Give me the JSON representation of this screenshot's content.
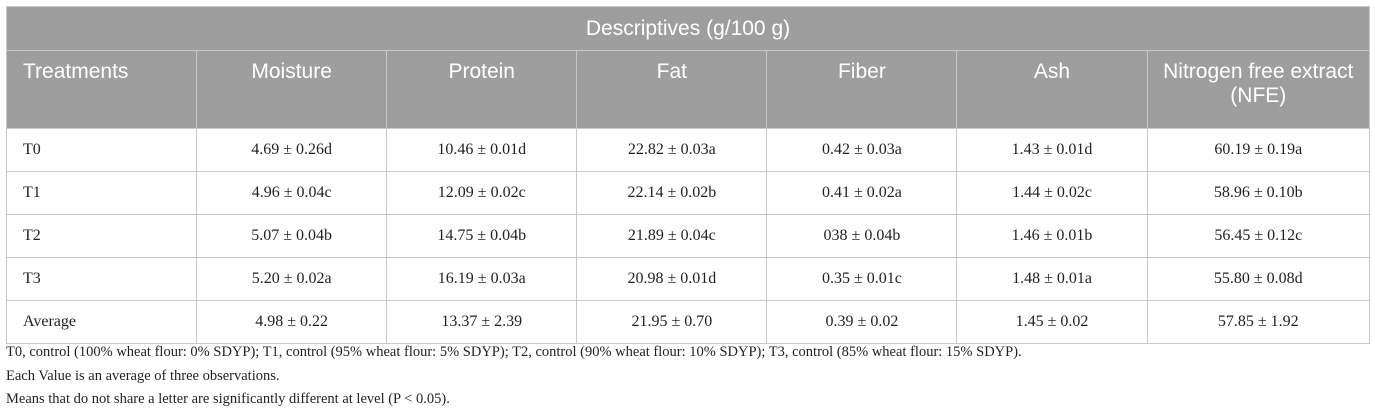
{
  "table": {
    "group_header": "Descriptives (g/100 g)",
    "columns": [
      "Treatments",
      "Moisture",
      "Protein",
      "Fat",
      "Fiber",
      "Ash",
      "Nitrogen free extract (NFE)"
    ],
    "rows": [
      [
        "T0",
        "4.69 ± 0.26d",
        "10.46 ± 0.01d",
        "22.82 ± 0.03a",
        "0.42 ± 0.03a",
        "1.43 ± 0.01d",
        "60.19 ± 0.19a"
      ],
      [
        "T1",
        "4.96 ± 0.04c",
        "12.09 ± 0.02c",
        "22.14 ± 0.02b",
        "0.41 ± 0.02a",
        "1.44 ± 0.02c",
        "58.96 ± 0.10b"
      ],
      [
        "T2",
        "5.07 ± 0.04b",
        "14.75 ± 0.04b",
        "21.89 ± 0.04c",
        "038 ± 0.04b",
        "1.46 ± 0.01b",
        "56.45 ± 0.12c"
      ],
      [
        "T3",
        "5.20 ± 0.02a",
        "16.19 ± 0.03a",
        "20.98 ± 0.01d",
        "0.35 ± 0.01c",
        "1.48 ± 0.01a",
        "55.80 ± 0.08d"
      ],
      [
        "Average",
        "4.98 ± 0.22",
        "13.37 ± 2.39",
        "21.95 ± 0.70",
        "0.39 ± 0.02",
        "1.45 ± 0.02",
        "57.85 ± 1.92"
      ]
    ]
  },
  "footnotes": [
    "T0, control (100% wheat flour: 0% SDYP); T1, control (95% wheat flour: 5% SDYP); T2, control (90% wheat flour: 10% SDYP); T3, control (85% wheat flour: 15% SDYP).",
    "Each Value is an average of three observations.",
    "Means that do not share a letter are significantly different at level (P < 0.05)."
  ],
  "colors": {
    "header_bg": "#9e9e9e",
    "header_text": "#ffffff",
    "border": "#c8c8c8",
    "body_text": "#231f20"
  }
}
